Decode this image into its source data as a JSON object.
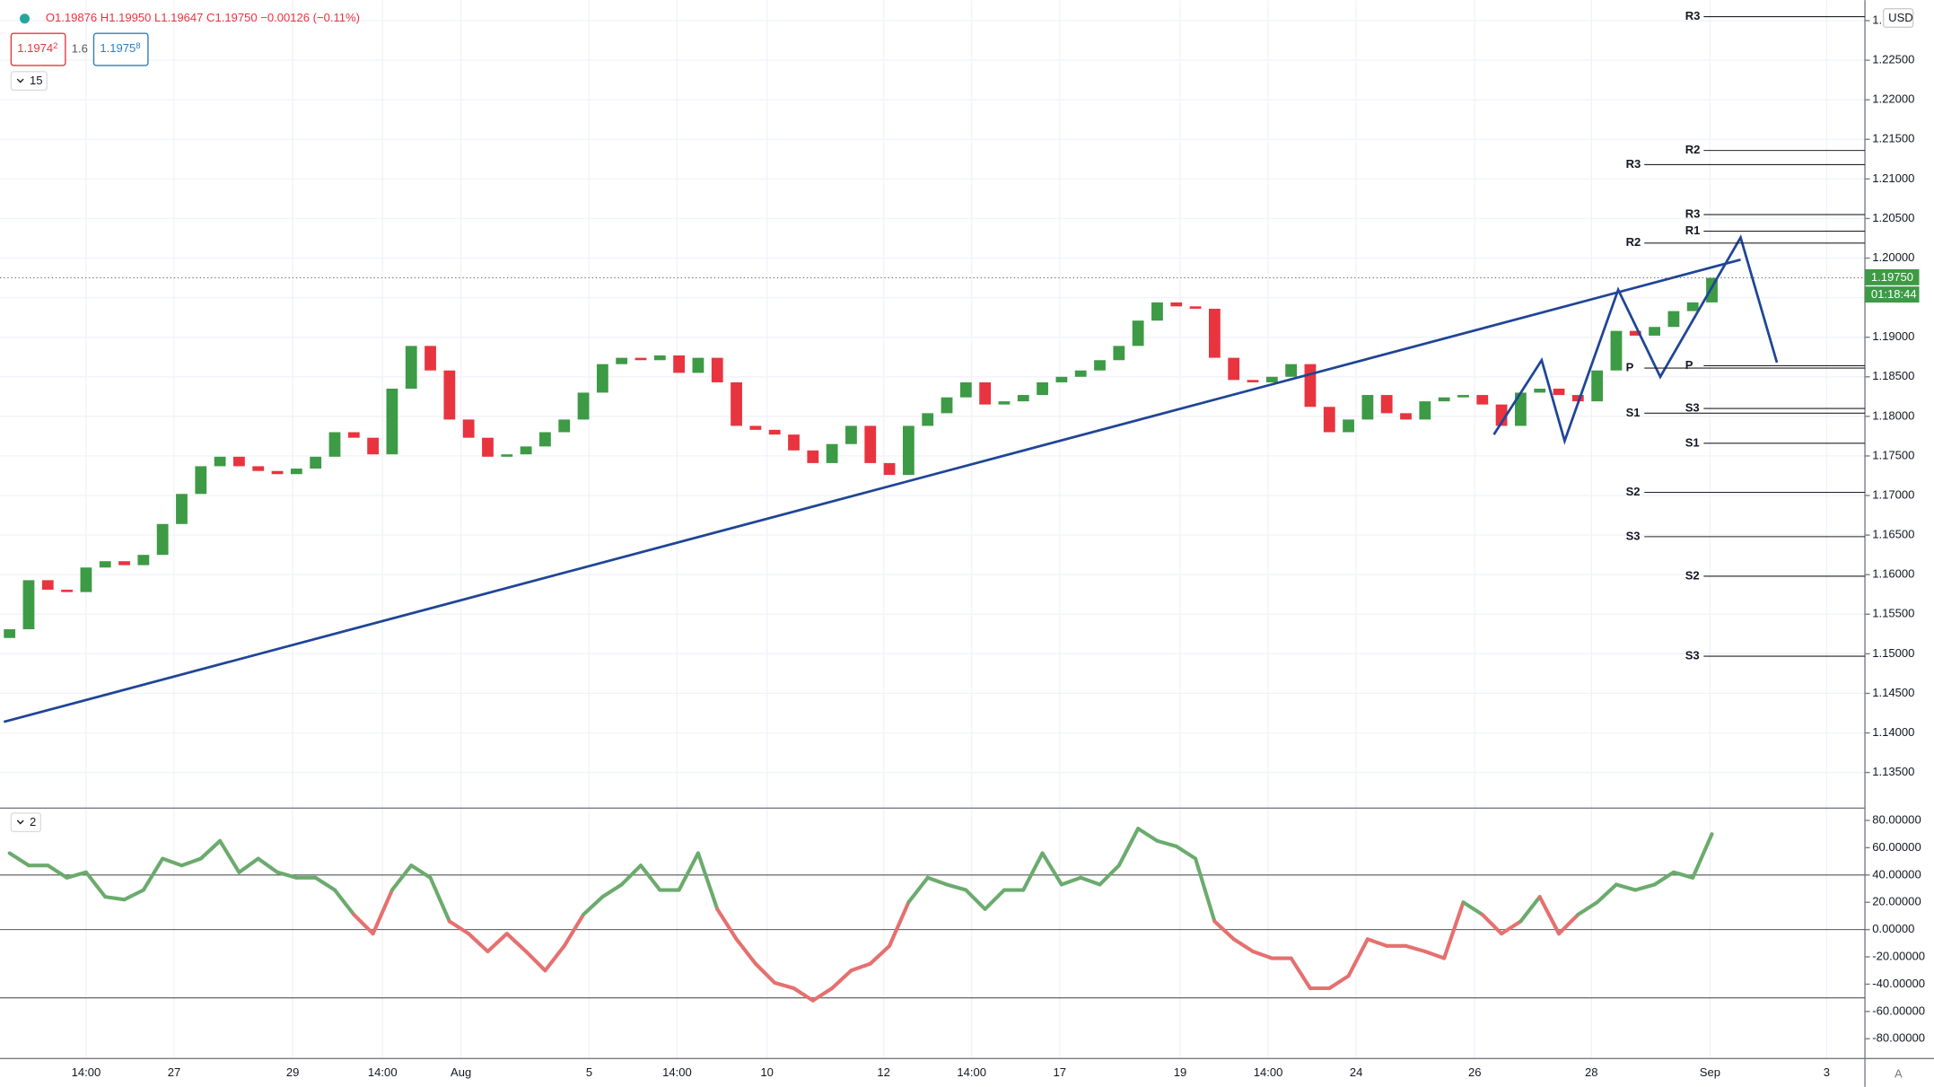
{
  "header": {
    "ohlc": "O1.19876 H1.19950 L1.19647 C1.19750 −0.00126 (−0.11%)",
    "bid": "1.1974",
    "bid_sup": "2",
    "spread": "1.6",
    "ask": "1.1975",
    "ask_sup": "8",
    "interval": "15",
    "pane2": "2",
    "currency": "USD",
    "auto": "A",
    "last_price": "1.19750",
    "countdown": "01:18:44"
  },
  "chart_data": [
    {
      "type": "candlestick",
      "up_color": "#3d9a45",
      "down_color": "#e8343f",
      "open": 1.152,
      "close": [
        1.1531,
        1.1593,
        1.1581,
        1.1578,
        1.1609,
        1.1617,
        1.1612,
        1.1625,
        1.1664,
        1.1702,
        1.1737,
        1.1749,
        1.1737,
        1.1731,
        1.1727,
        1.1734,
        1.1749,
        1.178,
        1.1773,
        1.1752,
        1.1835,
        1.1889,
        1.1858,
        1.1796,
        1.1773,
        1.1749,
        1.1752,
        1.1762,
        1.178,
        1.1796,
        1.183,
        1.1866,
        1.1874,
        1.1871,
        1.1877,
        1.1855,
        1.1874,
        1.1843,
        1.1788,
        1.1783,
        1.1777,
        1.1757,
        1.1741,
        1.1765,
        1.1788,
        1.1741,
        1.1726,
        1.1788,
        1.1804,
        1.1824,
        1.1843,
        1.1815,
        1.1819,
        1.1827,
        1.1843,
        1.185,
        1.1858,
        1.1871,
        1.1889,
        1.1921,
        1.1944,
        1.1939,
        1.1936,
        1.1874,
        1.1846,
        1.1843,
        1.185,
        1.1866,
        1.1812,
        1.178,
        1.1796,
        1.1827,
        1.1804,
        1.1796,
        1.1819,
        1.1824,
        1.1827,
        1.1815,
        1.1788,
        1.183,
        1.1835,
        1.1827,
        1.1819,
        1.1858,
        1.1908,
        1.1902,
        1.1913,
        1.1933,
        1.1944,
        1.1975
      ],
      "xlim": [
        -0.5,
        97
      ],
      "ylim": [
        1.1305,
        1.2326
      ],
      "yticks": [
        {
          "value": 1.135,
          "label": "1.13500"
        },
        {
          "value": 1.14,
          "label": "1.14000"
        },
        {
          "value": 1.145,
          "label": "1.14500"
        },
        {
          "value": 1.15,
          "label": "1.15000"
        },
        {
          "value": 1.155,
          "label": "1.15500"
        },
        {
          "value": 1.16,
          "label": "1.16000"
        },
        {
          "value": 1.165,
          "label": "1.16500"
        },
        {
          "value": 1.17,
          "label": "1.17000"
        },
        {
          "value": 1.175,
          "label": "1.17500"
        },
        {
          "value": 1.18,
          "label": "1.18000"
        },
        {
          "value": 1.185,
          "label": "1.18500"
        },
        {
          "value": 1.19,
          "label": "1.19000"
        },
        {
          "value": 1.195,
          "label": "1.19500"
        },
        {
          "value": 1.2,
          "label": "1.20000"
        },
        {
          "value": 1.205,
          "label": "1.20500"
        },
        {
          "value": 1.21,
          "label": "1.21000"
        },
        {
          "value": 1.215,
          "label": "1.21500"
        },
        {
          "value": 1.22,
          "label": "1.22000"
        },
        {
          "value": 1.225,
          "label": "1.22500"
        },
        {
          "value": 1.23,
          "label": "1."
        }
      ],
      "xticks": [
        {
          "value": 4,
          "label": "14:00"
        },
        {
          "value": 8.6,
          "label": "27"
        },
        {
          "value": 14.8,
          "label": "29"
        },
        {
          "value": 19.5,
          "label": "14:00"
        },
        {
          "value": 23.6,
          "label": "Aug"
        },
        {
          "value": 30.3,
          "label": "5"
        },
        {
          "value": 34.9,
          "label": "14:00"
        },
        {
          "value": 39.6,
          "label": "10"
        },
        {
          "value": 45.7,
          "label": "12"
        },
        {
          "value": 50.3,
          "label": "14:00"
        },
        {
          "value": 54.9,
          "label": "17"
        },
        {
          "value": 61.2,
          "label": "19"
        },
        {
          "value": 65.8,
          "label": "14:00"
        },
        {
          "value": 70.4,
          "label": "24"
        },
        {
          "value": 76.6,
          "label": "26"
        },
        {
          "value": 82.7,
          "label": "28"
        },
        {
          "value": 88.9,
          "label": "Sep"
        },
        {
          "value": 95,
          "label": "3"
        }
      ],
      "trendline": {
        "color": "#1f4596",
        "x": [
          -0.3,
          90.5
        ],
        "y": [
          1.1414,
          1.1998
        ]
      },
      "pattern": {
        "color": "#1f4596",
        "x": [
          77.6,
          80.1,
          81.3,
          84.1,
          86.3,
          90.5,
          92.4
        ],
        "y": [
          1.1777,
          1.1871,
          1.1769,
          1.196,
          1.185,
          1.2026,
          1.1868
        ]
      },
      "pivots": [
        {
          "label": "R3",
          "value": 1.2305,
          "start": 87.6
        },
        {
          "label": "R2",
          "value": 1.2136,
          "start": 87.6
        },
        {
          "label": "R3",
          "value": 1.2118,
          "start": 84.5
        },
        {
          "label": "R3",
          "value": 1.2055,
          "start": 87.6
        },
        {
          "label": "R1",
          "value": 1.2034,
          "start": 87.6
        },
        {
          "label": "R2",
          "value": 1.2019,
          "start": 84.5
        },
        {
          "label": "P",
          "value": 1.1864,
          "start": 87.6
        },
        {
          "label": "P",
          "value": 1.1861,
          "start": 84.5
        },
        {
          "label": "S3",
          "value": 1.181,
          "start": 87.6
        },
        {
          "label": "S1",
          "value": 1.1804,
          "start": 84.5
        },
        {
          "label": "S1",
          "value": 1.1766,
          "start": 87.6
        },
        {
          "label": "S2",
          "value": 1.1704,
          "start": 84.5
        },
        {
          "label": "S3",
          "value": 1.1648,
          "start": 84.5
        },
        {
          "label": "S2",
          "value": 1.1598,
          "start": 87.6
        },
        {
          "label": "S3",
          "value": 1.1497,
          "start": 87.6
        }
      ]
    },
    {
      "type": "line",
      "up_color": "#6bab6e",
      "down_color": "#e5706f",
      "values": [
        56,
        47,
        47,
        38,
        42,
        24,
        22,
        29,
        52,
        47,
        52,
        65,
        42,
        52,
        42,
        38,
        38,
        29,
        11,
        -3,
        29,
        47,
        38,
        6,
        -3,
        -16,
        -3,
        -16,
        -30,
        -12,
        11,
        24,
        33,
        47,
        29,
        29,
        56,
        15,
        -7,
        -25,
        -39,
        -43,
        -52,
        -43,
        -30,
        -25,
        -12,
        20,
        38,
        33,
        29,
        15,
        29,
        29,
        56,
        33,
        38,
        33,
        47,
        74,
        65,
        61,
        52,
        6,
        -7,
        -16,
        -21,
        -21,
        -43,
        -43,
        -34,
        -7,
        -12,
        -12,
        -16,
        -21,
        20,
        11,
        -3,
        6,
        24,
        -3,
        11,
        20,
        33,
        29,
        33,
        42,
        38,
        70
      ],
      "ylim": [
        -94.5,
        86.3
      ],
      "yticks": [
        {
          "value": -80,
          "label": "-80.00000"
        },
        {
          "value": -60,
          "label": "-60.00000"
        },
        {
          "value": -40,
          "label": "-40.00000"
        },
        {
          "value": -20,
          "label": "-20.00000"
        },
        {
          "value": 0,
          "label": "0.00000"
        },
        {
          "value": 20,
          "label": "20.00000"
        },
        {
          "value": 40,
          "label": "40.00000"
        },
        {
          "value": 60,
          "label": "60.00000"
        },
        {
          "value": 80,
          "label": "80.00000"
        }
      ],
      "levels": [
        40,
        0,
        -50
      ]
    }
  ]
}
